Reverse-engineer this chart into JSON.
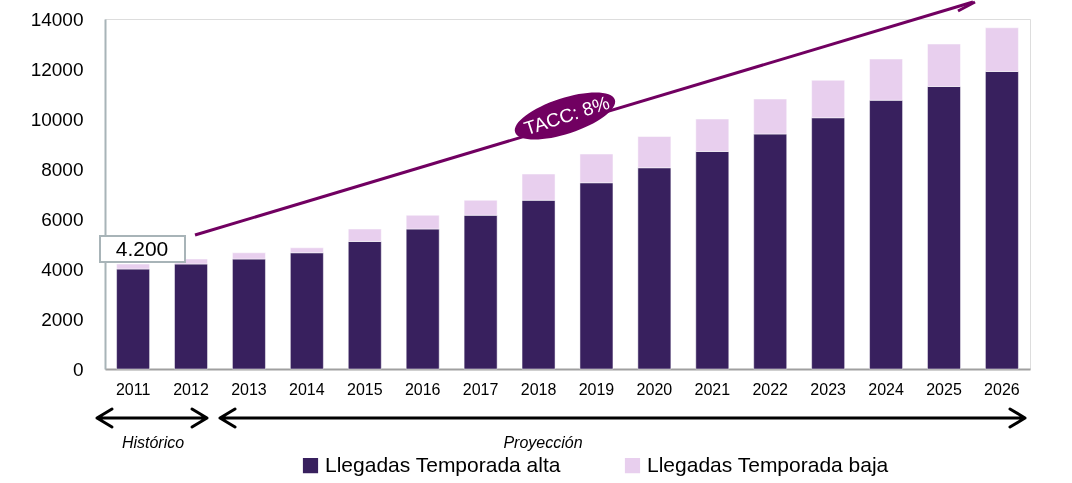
{
  "chart_data": {
    "type": "bar",
    "stacked": true,
    "categories": [
      "2011",
      "2012",
      "2013",
      "2014",
      "2015",
      "2016",
      "2017",
      "2018",
      "2019",
      "2020",
      "2021",
      "2022",
      "2023",
      "2024",
      "2025",
      "2026"
    ],
    "series": [
      {
        "name": "Llegadas Temporada alta",
        "color": "#38205e",
        "values": [
          4000,
          4200,
          4400,
          4650,
          5100,
          5600,
          6150,
          6750,
          7450,
          8050,
          8700,
          9400,
          10050,
          10750,
          11300,
          11900
        ]
      },
      {
        "name": "Llegadas Temporada baja",
        "color": "#e8cfee",
        "values": [
          200,
          200,
          250,
          200,
          500,
          550,
          600,
          1050,
          1150,
          1250,
          1300,
          1400,
          1500,
          1650,
          1700,
          1750
        ]
      }
    ],
    "ylim": [
      0,
      14000
    ],
    "yticks": [
      0,
      2000,
      4000,
      6000,
      8000,
      10000,
      12000,
      14000
    ],
    "grid": false,
    "legend": "bottom",
    "annotations": [
      "4.200",
      "TACC: 8%",
      "Histórico",
      "Proyección"
    ]
  }
}
